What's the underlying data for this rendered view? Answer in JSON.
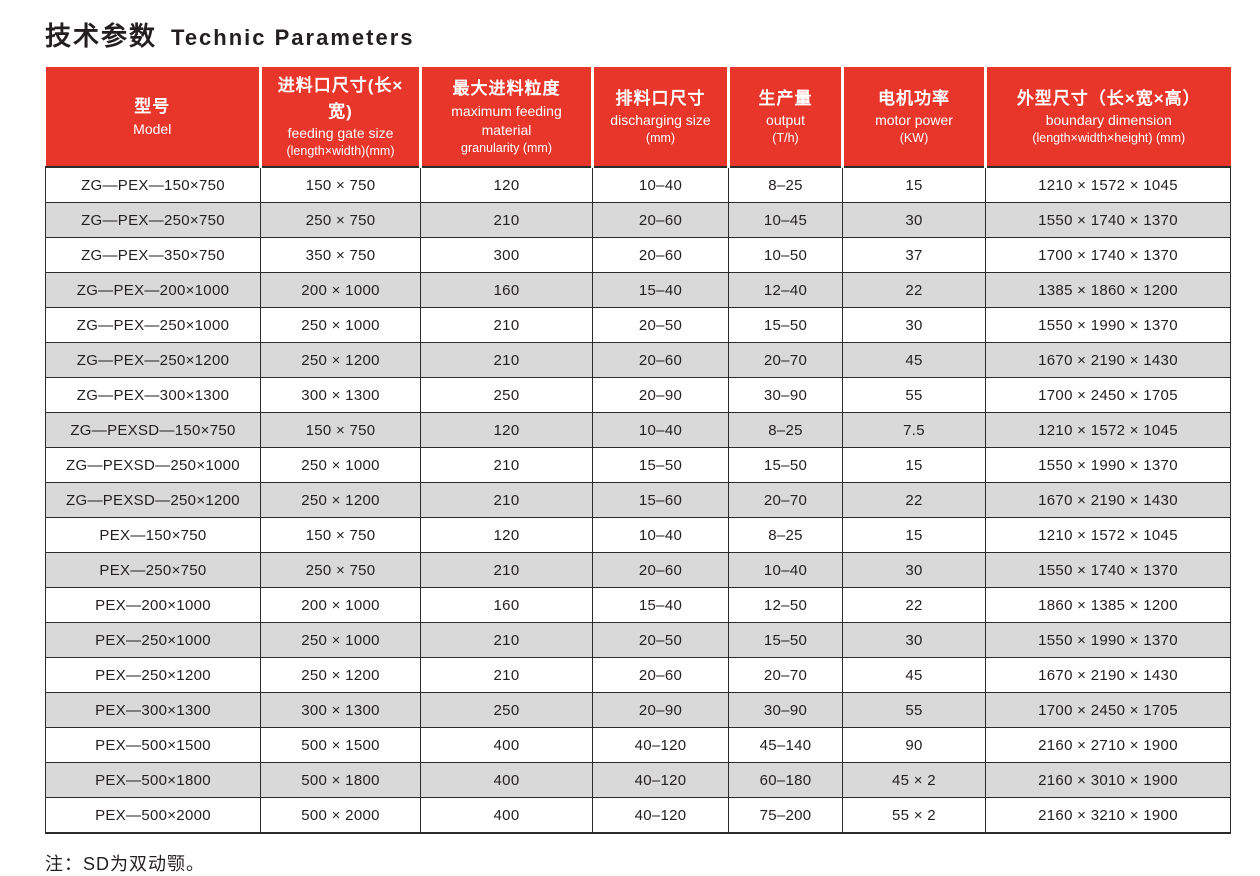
{
  "colors": {
    "header_bg": "#e8362b",
    "header_text": "#ffffff",
    "row_bg": "#ffffff",
    "row_alt_bg": "#d9d9d9",
    "border": "#2b2b2b",
    "text": "#231f20"
  },
  "page": {
    "title_zh": "技术参数",
    "title_en": "Technic Parameters",
    "note": "注：SD为双动颚。"
  },
  "table": {
    "columns": [
      {
        "zh": "型号",
        "en": "Model",
        "sub": ""
      },
      {
        "zh": "进料口尺寸(长×宽)",
        "en": "feeding gate size",
        "sub": "(length×width)(mm)"
      },
      {
        "zh": "最大进料粒度",
        "en": "maximum feeding material",
        "sub": "granularity (mm)"
      },
      {
        "zh": "排料口尺寸",
        "en": "discharging size",
        "sub": "(mm)"
      },
      {
        "zh": "生产量",
        "en": "output",
        "sub": "(T/h)"
      },
      {
        "zh": "电机功率",
        "en": "motor power",
        "sub": "(KW)"
      },
      {
        "zh": "外型尺寸（长×宽×高）",
        "en": "boundary dimension",
        "sub": "(length×width×height) (mm)"
      }
    ],
    "rows": [
      [
        "ZG—PEX—150×750",
        "150 × 750",
        "120",
        "10–40",
        "8–25",
        "15",
        "1210 × 1572 × 1045"
      ],
      [
        "ZG—PEX—250×750",
        "250 × 750",
        "210",
        "20–60",
        "10–45",
        "30",
        "1550 × 1740 × 1370"
      ],
      [
        "ZG—PEX—350×750",
        "350 × 750",
        "300",
        "20–60",
        "10–50",
        "37",
        "1700 × 1740 × 1370"
      ],
      [
        "ZG—PEX—200×1000",
        "200 × 1000",
        "160",
        "15–40",
        "12–40",
        "22",
        "1385 × 1860 × 1200"
      ],
      [
        "ZG—PEX—250×1000",
        "250 × 1000",
        "210",
        "20–50",
        "15–50",
        "30",
        "1550 × 1990 × 1370"
      ],
      [
        "ZG—PEX—250×1200",
        "250 × 1200",
        "210",
        "20–60",
        "20–70",
        "45",
        "1670 × 2190 × 1430"
      ],
      [
        "ZG—PEX—300×1300",
        "300 × 1300",
        "250",
        "20–90",
        "30–90",
        "55",
        "1700 × 2450 × 1705"
      ],
      [
        "ZG—PEXSD—150×750",
        "150 × 750",
        "120",
        "10–40",
        "8–25",
        "7.5",
        "1210 × 1572 × 1045"
      ],
      [
        "ZG—PEXSD—250×1000",
        "250 × 1000",
        "210",
        "15–50",
        "15–50",
        "15",
        "1550 × 1990 × 1370"
      ],
      [
        "ZG—PEXSD—250×1200",
        "250 × 1200",
        "210",
        "15–60",
        "20–70",
        "22",
        "1670 × 2190 × 1430"
      ],
      [
        "PEX—150×750",
        "150 × 750",
        "120",
        "10–40",
        "8–25",
        "15",
        "1210 × 1572 × 1045"
      ],
      [
        "PEX—250×750",
        "250 × 750",
        "210",
        "20–60",
        "10–40",
        "30",
        "1550 × 1740 × 1370"
      ],
      [
        "PEX—200×1000",
        "200 × 1000",
        "160",
        "15–40",
        "12–50",
        "22",
        "1860 × 1385 × 1200"
      ],
      [
        "PEX—250×1000",
        "250 × 1000",
        "210",
        "20–50",
        "15–50",
        "30",
        "1550 × 1990 × 1370"
      ],
      [
        "PEX—250×1200",
        "250 × 1200",
        "210",
        "20–60",
        "20–70",
        "45",
        "1670 × 2190 × 1430"
      ],
      [
        "PEX—300×1300",
        "300 × 1300",
        "250",
        "20–90",
        "30–90",
        "55",
        "1700 × 2450 × 1705"
      ],
      [
        "PEX—500×1500",
        "500 × 1500",
        "400",
        "40–120",
        "45–140",
        "90",
        "2160 × 2710 × 1900"
      ],
      [
        "PEX—500×1800",
        "500 × 1800",
        "400",
        "40–120",
        "60–180",
        "45 × 2",
        "2160 × 3010 × 1900"
      ],
      [
        "PEX—500×2000",
        "500 × 2000",
        "400",
        "40–120",
        "75–200",
        "55 × 2",
        "2160 × 3210 × 1900"
      ]
    ]
  }
}
